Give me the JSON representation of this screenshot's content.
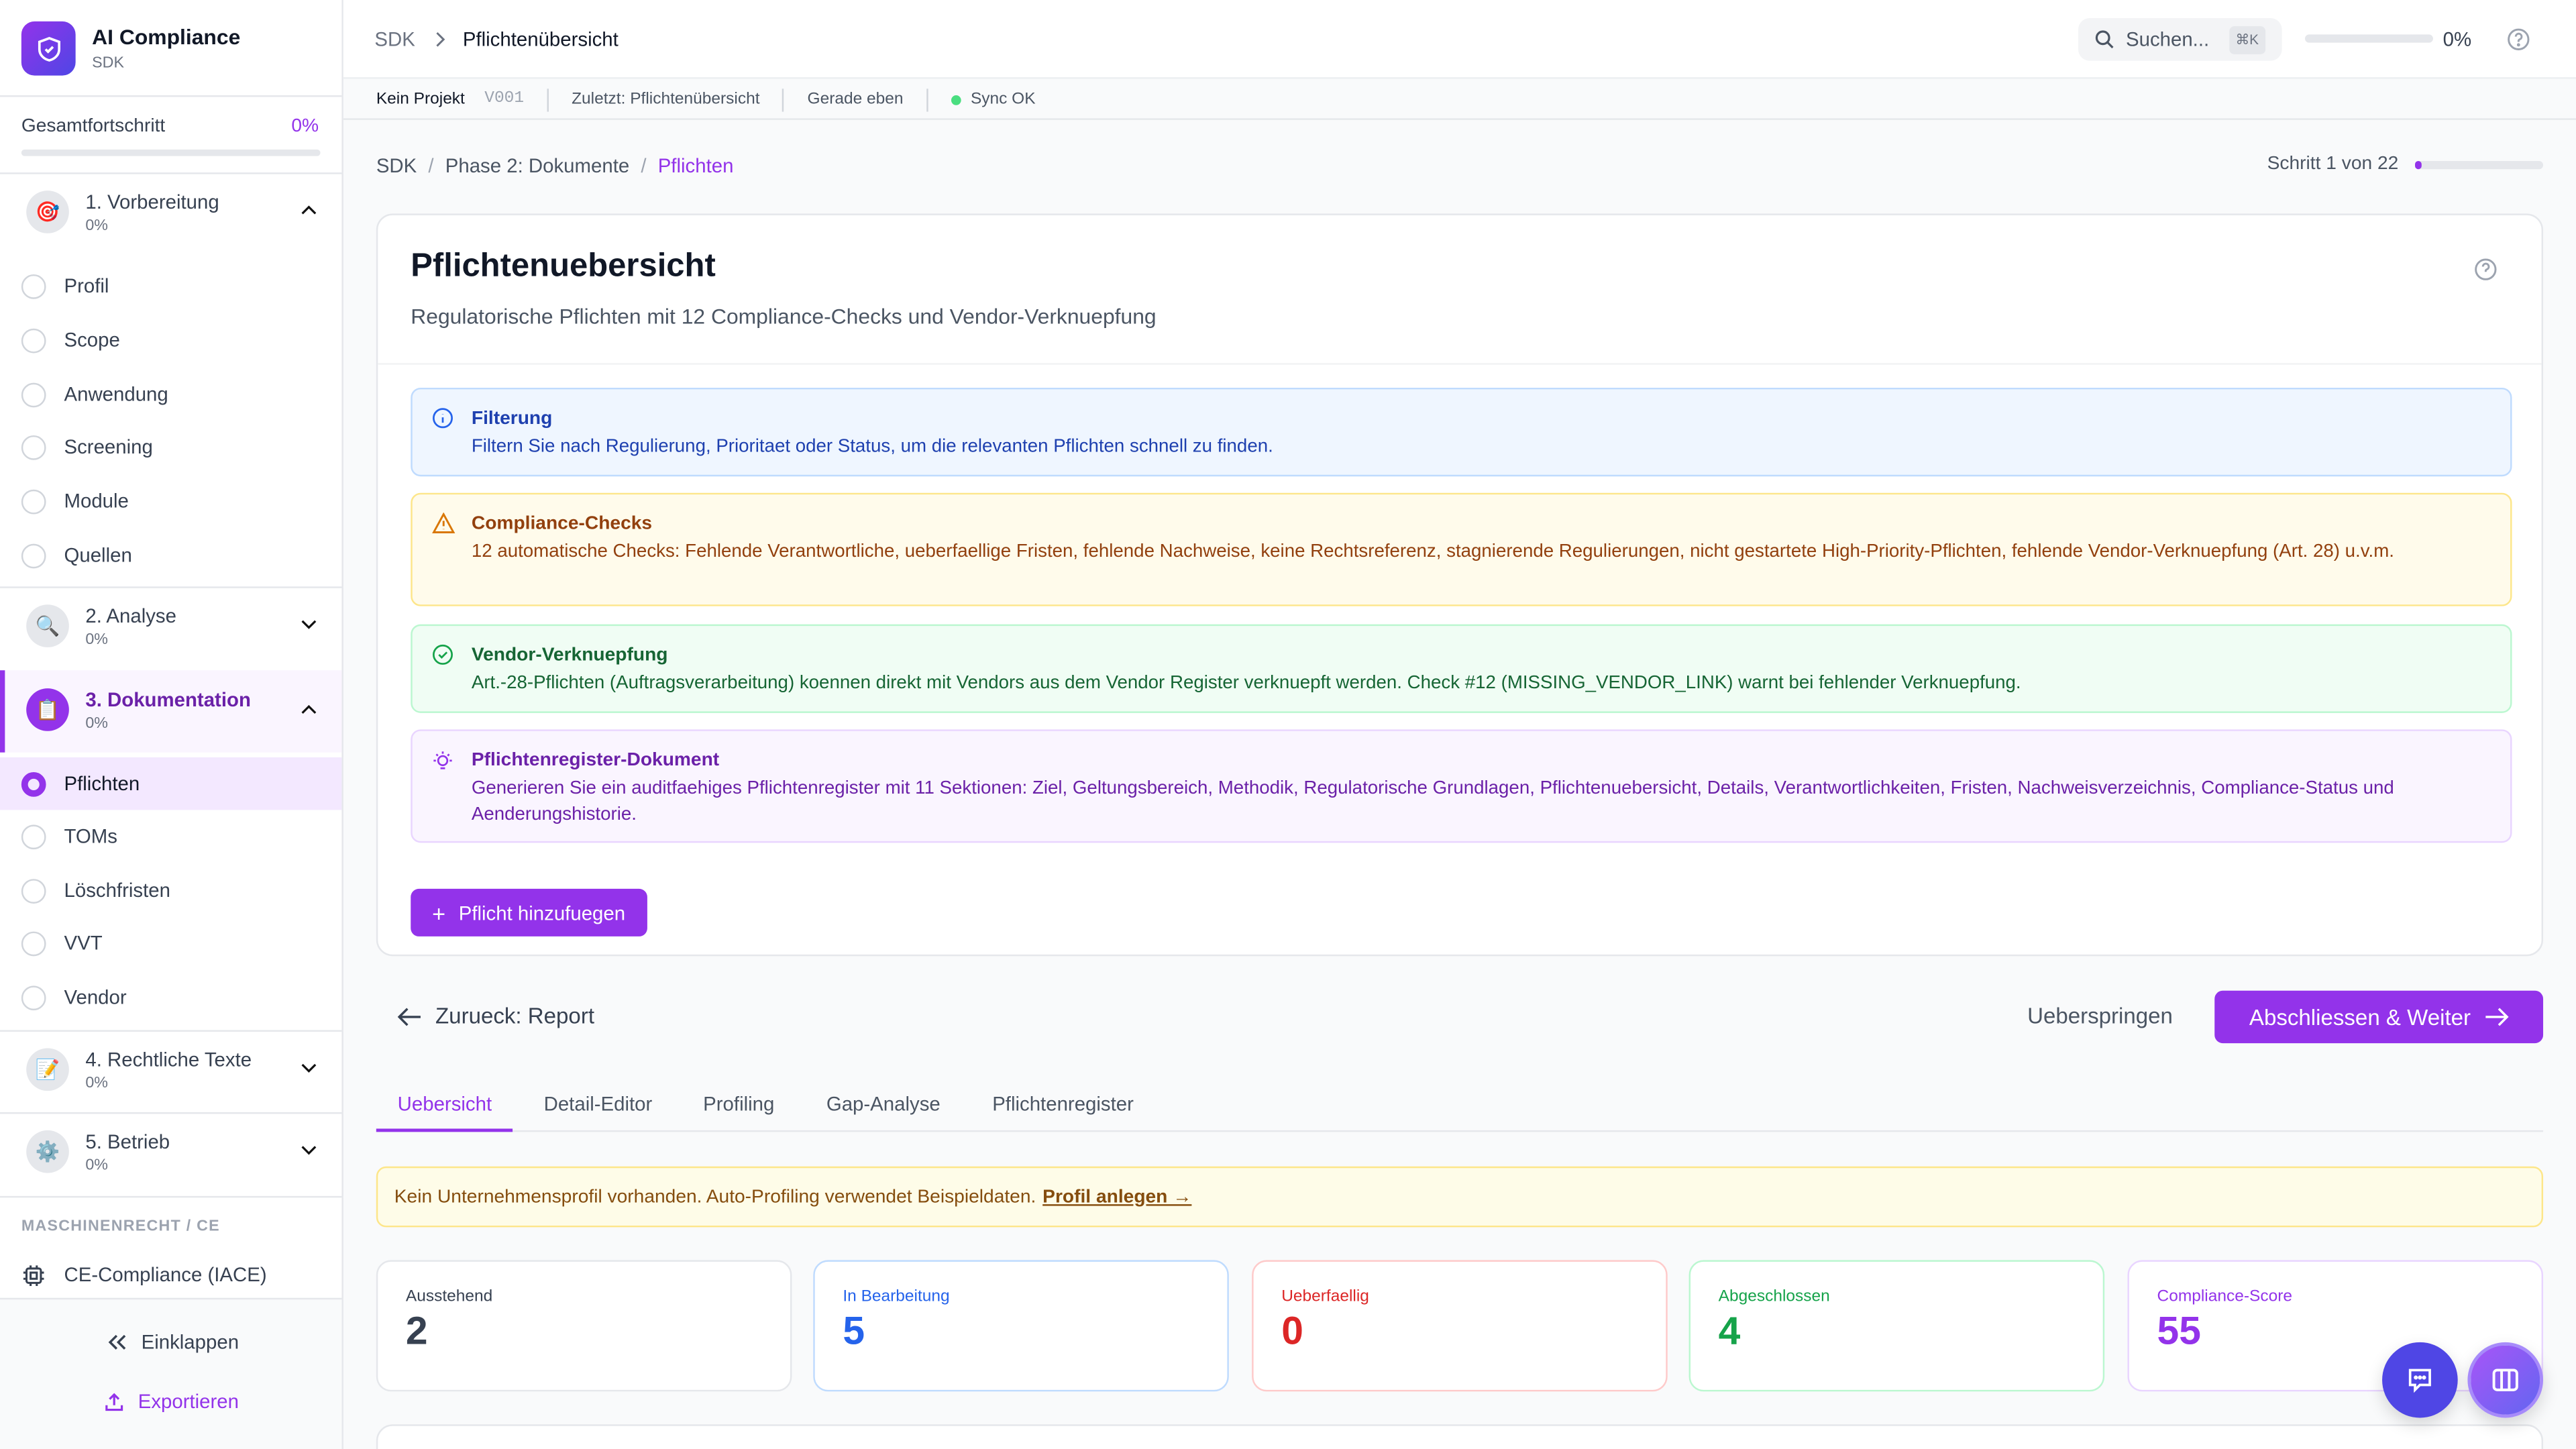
{
  "app": {
    "title": "AI Compliance",
    "subtitle": "SDK"
  },
  "progress": {
    "label": "Gesamtfortschritt",
    "value": "0%",
    "fraction": 0
  },
  "phases": [
    {
      "title": "1. Vorbereitung",
      "progress": "0%",
      "icon": "target-icon",
      "expanded": true,
      "items": [
        "Profil",
        "Scope",
        "Anwendung",
        "Screening",
        "Module",
        "Quellen"
      ]
    },
    {
      "title": "2. Analyse",
      "progress": "0%",
      "icon": "magnifier-icon",
      "expanded": false
    },
    {
      "title": "3. Dokumentation",
      "progress": "0%",
      "icon": "clipboard-icon",
      "expanded": true,
      "active": true,
      "items": [
        "Pflichten",
        "TOMs",
        "Löschfristen",
        "VVT",
        "Vendor"
      ]
    },
    {
      "title": "4. Rechtliche Texte",
      "progress": "0%",
      "icon": "pencil-icon",
      "expanded": false
    },
    {
      "title": "5. Betrieb",
      "progress": "0%",
      "icon": "gear-icon",
      "expanded": false
    }
  ],
  "sidebar_section": {
    "label": "MASCHINENRECHT / CE",
    "item": "CE-Compliance (IACE)"
  },
  "sidebar_footer": {
    "collapse": "Einklappen",
    "export": "Exportieren"
  },
  "topbar": {
    "crumb_root": "SDK",
    "crumb_current": "Pflichtenübersicht",
    "search_placeholder": "Suchen...",
    "shortcut": "⌘K",
    "progress": "0%"
  },
  "statusbar": {
    "project": "Kein Projekt",
    "version": "V001",
    "last": "Zuletzt: Pflichtenübersicht",
    "time": "Gerade eben",
    "sync": "Sync OK"
  },
  "breadcrumb": {
    "a": "SDK",
    "b": "Phase 2: Dokumente",
    "c": "Pflichten",
    "step": "Schritt 1 von 22",
    "step_fraction": 0.045
  },
  "page": {
    "title": "Pflichtenuebersicht",
    "subtitle": "Regulatorische Pflichten mit 12 Compliance-Checks und Vendor-Verknuepfung"
  },
  "alerts": [
    {
      "title": "Filterung",
      "text": "Filtern Sie nach Regulierung, Prioritaet oder Status, um die relevanten Pflichten schnell zu finden."
    },
    {
      "title": "Compliance-Checks",
      "text": "12 automatische Checks: Fehlende Verantwortliche, ueberfaellige Fristen, fehlende Nachweise, keine Rechtsreferenz, stagnierende Regulierungen, nicht gestartete High-Priority-Pflichten, fehlende Vendor-Verknuepfung (Art. 28) u.v.m."
    },
    {
      "title": "Vendor-Verknuepfung",
      "text": "Art.-28-Pflichten (Auftragsverarbeitung) koennen direkt mit Vendors aus dem Vendor Register verknuepft werden. Check #12 (MISSING_VENDOR_LINK) warnt bei fehlender Verknuepfung."
    },
    {
      "title": "Pflichtenregister-Dokument",
      "text": "Generieren Sie ein auditfaehiges Pflichtenregister mit 11 Sektionen: Ziel, Geltungsbereich, Methodik, Regulatorische Grundlagen, Pflichtenuebersicht, Details, Verantwortlichkeiten, Fristen, Nachweisverzeichnis, Compliance-Status und Aenderungshistorie."
    }
  ],
  "add_button": "Pflicht hinzufuegen",
  "nav": {
    "back": "Zurueck: Report",
    "skip": "Ueberspringen",
    "next": "Abschliessen & Weiter"
  },
  "tabs": [
    "Uebersicht",
    "Detail-Editor",
    "Profiling",
    "Gap-Analyse",
    "Pflichtenregister"
  ],
  "banner": {
    "text": "Kein Unternehmensprofil vorhanden. Auto-Profiling verwendet Beispieldaten.",
    "link": "Profil anlegen →"
  },
  "stats": [
    {
      "label": "Ausstehend",
      "value": "2",
      "color": "#374151"
    },
    {
      "label": "In Bearbeitung",
      "value": "5",
      "color": "#2563eb"
    },
    {
      "label": "Ueberfaellig",
      "value": "0",
      "color": "#dc2626"
    },
    {
      "label": "Abgeschlossen",
      "value": "4",
      "color": "#16a34a"
    },
    {
      "label": "Compliance-Score",
      "value": "55",
      "color": "#9333ea"
    }
  ],
  "colors": {
    "accent": "#9333ea"
  }
}
